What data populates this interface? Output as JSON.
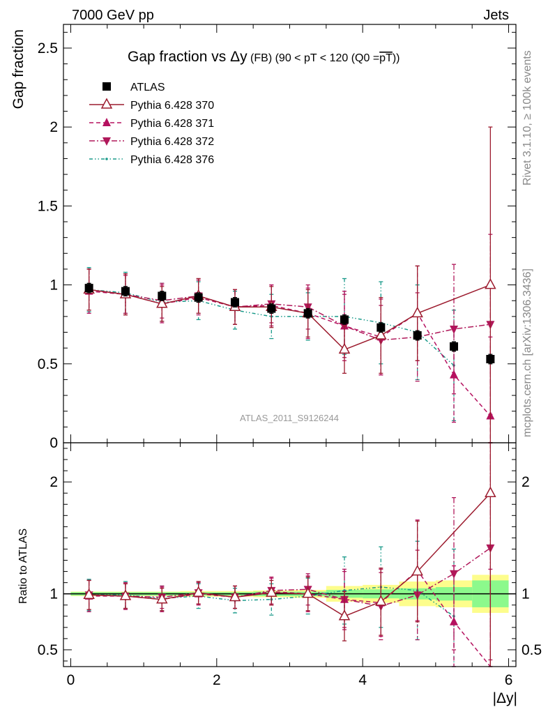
{
  "header": {
    "left": "7000 GeV pp",
    "right": "Jets"
  },
  "side_labels": {
    "top": "Rivet 3.1.10, ≥ 100k events",
    "bottom": "mcplots.cern.ch [arXiv:1306.3436]"
  },
  "colors": {
    "data": "#000000",
    "p370": "#9c1b2e",
    "p371": "#b5115f",
    "p372": "#b0185a",
    "p376": "#1a9a8a",
    "band_inner": "#8cf98c",
    "band_outer": "#fdfd8c"
  },
  "chart_data": [
    {
      "type": "scatter",
      "panel": "main",
      "title_main": "Gap fraction vs ",
      "title_delta": "Δy",
      "title_small": " (FB) (90 < pT < 120 (Q0 =",
      "title_over": "pT",
      "title_end": "))",
      "ylabel": "Gap fraction",
      "ylim": [
        0,
        2.65
      ],
      "xlim": [
        -0.1,
        6.1
      ],
      "y_ticks": [
        0,
        0.5,
        1,
        1.5,
        2,
        2.5
      ],
      "y_tick_labels": [
        "0",
        "0.5",
        "1",
        "1.5",
        "2",
        "2.5"
      ],
      "watermark": "ATLAS_2011_S9126244",
      "legend_position": "top-left",
      "x": [
        0.25,
        0.75,
        1.25,
        1.75,
        2.25,
        2.75,
        3.25,
        3.75,
        4.25,
        4.75,
        5.25,
        5.75
      ],
      "series": [
        {
          "name": "ATLAS",
          "key": "data",
          "marker": "square",
          "line": "none",
          "values": [
            0.98,
            0.96,
            0.93,
            0.92,
            0.89,
            0.85,
            0.82,
            0.78,
            0.73,
            0.68,
            0.61,
            0.53
          ],
          "err": [
            0.03,
            0.03,
            0.03,
            0.03,
            0.03,
            0.03,
            0.03,
            0.03,
            0.03,
            0.03,
            0.03,
            0.03
          ]
        },
        {
          "name": "Pythia 6.428 370",
          "key": "p370",
          "marker": "triangle-up-open",
          "line": "solid",
          "values": [
            0.97,
            0.94,
            0.88,
            0.93,
            0.86,
            0.86,
            0.82,
            0.59,
            0.68,
            0.82,
            null,
            1.0
          ],
          "err": [
            0.13,
            0.13,
            0.11,
            0.11,
            0.11,
            0.13,
            0.15,
            0.15,
            0.24,
            0.3,
            null,
            1.0
          ]
        },
        {
          "name": "Pythia 6.428 371",
          "key": "p371",
          "marker": "triangle-up",
          "line": "dashed",
          "values": [
            0.96,
            0.94,
            0.88,
            0.92,
            0.86,
            0.87,
            0.82,
            0.74,
            0.67,
            0.82,
            0.43,
            0.17
          ],
          "err": [
            0.14,
            0.13,
            0.12,
            0.11,
            0.11,
            0.13,
            0.16,
            0.22,
            0.24,
            0.3,
            0.3,
            0.5
          ]
        },
        {
          "name": "Pythia 6.428 372",
          "key": "p372",
          "marker": "triangle-down",
          "line": "dashdot",
          "values": [
            0.97,
            0.94,
            0.9,
            0.93,
            0.86,
            0.88,
            0.86,
            0.74,
            0.65,
            0.67,
            0.72,
            0.75
          ],
          "err": [
            0.13,
            0.12,
            0.11,
            0.11,
            0.11,
            0.12,
            0.14,
            0.2,
            0.22,
            0.28,
            0.41,
            0.57
          ]
        },
        {
          "name": "Pythia 6.428 376",
          "key": "p376",
          "marker": "dot",
          "line": "dashdotdot",
          "values": [
            0.97,
            0.95,
            0.89,
            0.9,
            0.84,
            0.8,
            0.8,
            0.8,
            0.76,
            0.7,
            0.49,
            null
          ],
          "err": [
            0.14,
            0.13,
            0.12,
            0.12,
            0.12,
            0.14,
            0.15,
            0.24,
            0.26,
            0.3,
            0.35,
            null
          ]
        }
      ]
    },
    {
      "type": "scatter",
      "panel": "ratio",
      "ylabel": "Ratio to ATLAS",
      "xlabel": "|Δy|",
      "ylim": [
        0.35,
        2.35
      ],
      "xlim": [
        -0.1,
        6.1
      ],
      "y_ticks": [
        0.5,
        1,
        2
      ],
      "y_tick_labels": [
        "0.5",
        "1",
        "2"
      ],
      "x_ticks": [
        0,
        2,
        4,
        6
      ],
      "x_tick_labels": [
        "0",
        "2",
        "4",
        "6"
      ],
      "x": [
        0.25,
        0.75,
        1.25,
        1.75,
        2.25,
        2.75,
        3.25,
        3.75,
        4.25,
        4.75,
        5.25,
        5.75
      ],
      "band_edges": [
        0,
        0.5,
        1,
        1.5,
        2,
        2.5,
        3,
        3.5,
        4,
        4.5,
        5,
        5.5,
        6
      ],
      "band_inner": [
        0.015,
        0.015,
        0.015,
        0.015,
        0.015,
        0.02,
        0.02,
        0.035,
        0.04,
        0.05,
        0.06,
        0.12
      ],
      "band_outer": [
        0.02,
        0.02,
        0.02,
        0.025,
        0.025,
        0.03,
        0.035,
        0.07,
        0.08,
        0.11,
        0.12,
        0.17
      ],
      "series": [
        {
          "key": "p370",
          "marker": "triangle-up-open",
          "line": "solid",
          "values": [
            0.99,
            0.98,
            0.95,
            1.01,
            0.97,
            1.01,
            1.0,
            0.8,
            0.93,
            1.2,
            null,
            1.9
          ],
          "err": [
            0.13,
            0.11,
            0.1,
            0.1,
            0.1,
            0.11,
            0.15,
            0.22,
            0.3,
            0.45,
            null,
            1.6
          ]
        },
        {
          "key": "p371",
          "marker": "triangle-up",
          "line": "dashed",
          "values": [
            0.98,
            0.98,
            0.95,
            1.0,
            0.97,
            1.02,
            1.0,
            0.95,
            0.92,
            1.21,
            0.75,
            0.32
          ],
          "err": [
            0.14,
            0.12,
            0.11,
            0.1,
            0.1,
            0.12,
            0.16,
            0.27,
            0.3,
            0.45,
            0.5,
            0.9
          ]
        },
        {
          "key": "p372",
          "marker": "triangle-down",
          "line": "dashdot",
          "values": [
            0.99,
            0.98,
            0.97,
            1.01,
            0.97,
            1.03,
            1.04,
            0.95,
            0.89,
            0.99,
            1.18,
            1.41
          ],
          "err": [
            0.13,
            0.11,
            0.1,
            0.1,
            0.1,
            0.12,
            0.14,
            0.25,
            0.3,
            0.4,
            0.68,
            1.0
          ]
        },
        {
          "key": "p376",
          "marker": "dot",
          "line": "dashdotdot",
          "values": [
            0.99,
            0.99,
            0.96,
            0.98,
            0.94,
            0.95,
            0.98,
            1.03,
            1.06,
            1.03,
            0.8,
            null
          ],
          "err": [
            0.14,
            0.12,
            0.11,
            0.11,
            0.11,
            0.14,
            0.16,
            0.3,
            0.36,
            0.44,
            0.6,
            null
          ]
        }
      ]
    }
  ]
}
